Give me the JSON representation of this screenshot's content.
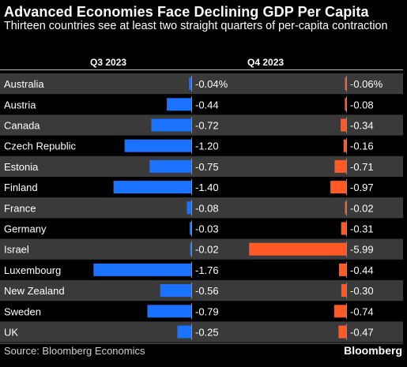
{
  "title": "Advanced Economies Face Declining GDP Per Capita",
  "subtitle": "Thirteen countries see at least two straight quarters of per-capita contraction",
  "source": "Source: Bloomberg Economics",
  "brand": "Bloomberg",
  "colors": {
    "q3": "#1a72ff",
    "q4": "#ff5a26",
    "row_band": "#3a3a3a",
    "zero_line": "#8a8a8a"
  },
  "chart_data": {
    "type": "bar",
    "orientation": "horizontal",
    "categories": [
      "Australia",
      "Austria",
      "Canada",
      "Czech Republic",
      "Estonia",
      "Finland",
      "France",
      "Germany",
      "Israel",
      "Luxembourg",
      "New Zealand",
      "Sweden",
      "UK"
    ],
    "series": [
      {
        "name": "Q3 2023",
        "values": [
          -0.04,
          -0.44,
          -0.72,
          -1.2,
          -0.75,
          -1.4,
          -0.08,
          -0.03,
          -0.02,
          -1.76,
          -0.56,
          -0.79,
          -0.25
        ],
        "labels": [
          "-0.04%",
          "-0.44",
          "-0.72",
          "-1.20",
          "-0.75",
          "-1.40",
          "-0.08",
          "-0.03",
          "-0.02",
          "-1.76",
          "-0.56",
          "-0.79",
          "-0.25"
        ]
      },
      {
        "name": "Q4 2023",
        "values": [
          -0.06,
          -0.08,
          -0.34,
          -0.16,
          -0.71,
          -0.97,
          -0.02,
          -0.31,
          -5.99,
          -0.44,
          -0.3,
          -0.74,
          -0.47
        ],
        "labels": [
          "-0.06%",
          "-0.08",
          "-0.34",
          "-0.16",
          "-0.71",
          "-0.97",
          "-0.02",
          "-0.31",
          "-5.99",
          "-0.44",
          "-0.30",
          "-0.74",
          "-0.47"
        ]
      }
    ]
  }
}
